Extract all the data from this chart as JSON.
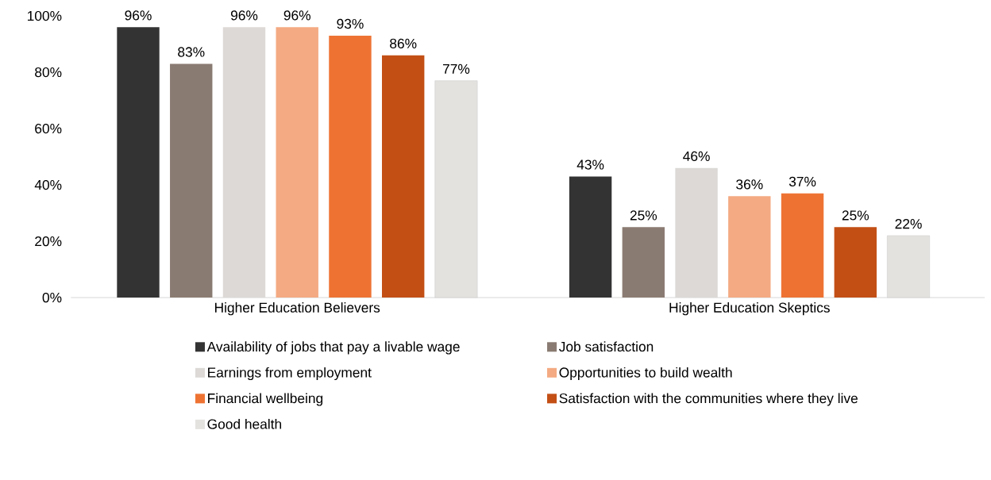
{
  "chart_data": {
    "type": "bar",
    "categories": [
      "Higher Education Believers",
      "Higher Education Skeptics"
    ],
    "series": [
      {
        "name": "Availability of jobs that pay a livable wage",
        "color": "#333333",
        "values": [
          96,
          43
        ],
        "value_labels": [
          "96%",
          "43%"
        ]
      },
      {
        "name": "Job satisfaction",
        "color": "#8a7b72",
        "values": [
          83,
          25
        ],
        "value_labels": [
          "83%",
          "25%"
        ]
      },
      {
        "name": "Earnings from employment",
        "color": "#dcd9d6",
        "values": [
          96,
          46
        ],
        "value_labels": [
          "96%",
          "46%"
        ]
      },
      {
        "name": "Opportunities to build wealth",
        "color": "#f4aa82",
        "values": [
          96,
          36
        ],
        "value_labels": [
          "96%",
          "36%"
        ]
      },
      {
        "name": "Financial wellbeing",
        "color": "#ee7333",
        "values": [
          93,
          37
        ],
        "value_labels": [
          "93%",
          "37%"
        ]
      },
      {
        "name": "Satisfaction with the communities where they live",
        "color": "#c34f15",
        "values": [
          86,
          25
        ],
        "value_labels": [
          "86%",
          "25%"
        ]
      },
      {
        "name": "Good health",
        "color": "#e4e2df",
        "values": [
          77,
          22
        ],
        "value_labels": [
          "77%",
          "22%"
        ]
      }
    ],
    "ylim": [
      0,
      100
    ],
    "yticks": [
      {
        "value": 0,
        "label": "0%"
      },
      {
        "value": 20,
        "label": "20%"
      },
      {
        "value": 40,
        "label": "40%"
      },
      {
        "value": 60,
        "label": "60%"
      },
      {
        "value": 80,
        "label": "80%"
      },
      {
        "value": 100,
        "label": "100%"
      }
    ],
    "legend": "bottom"
  }
}
